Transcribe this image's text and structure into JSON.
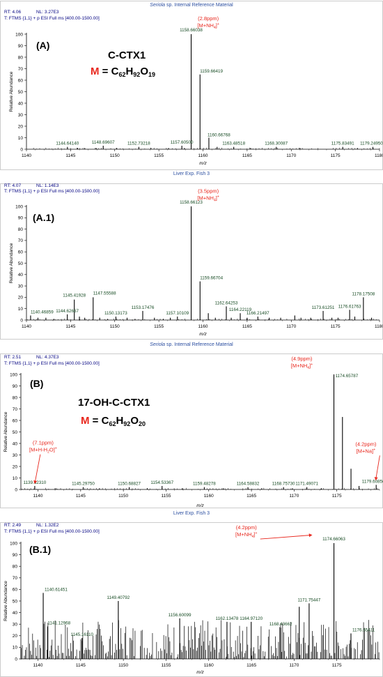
{
  "colors": {
    "caption": "#2b4ea0",
    "header": "#000080",
    "peak_label": "#154a22",
    "annotation": "#e8261c",
    "axis": "#000000",
    "border": "#aaaaaa"
  },
  "chart_data": [
    {
      "type": "line",
      "caption_prefix": "Seriola",
      "caption_suffix": " sp. Internal Reference Material",
      "rt_text": "RT:  4.06",
      "nl_text": "NL:  3.27E3",
      "scan_text": "T:  FTMS {1,1}  + p ESI Full ms [400.00-1500.00]",
      "panel_label": "(A)",
      "compound_name": "C-CTX1",
      "formula": {
        "m": "M",
        "eq": " = C",
        "c": "62",
        "h": "92",
        "o": "19"
      },
      "xlabel": "m/z",
      "ylabel": "Relative Abundance",
      "xlim": [
        1140,
        1180
      ],
      "ylim": [
        0,
        100
      ],
      "xticks": [
        1140,
        1145,
        1150,
        1155,
        1160,
        1165,
        1170,
        1175,
        1180
      ],
      "yticks": [
        0,
        10,
        20,
        30,
        40,
        50,
        60,
        70,
        80,
        90,
        100
      ],
      "peaks": [
        {
          "mz": 1144.6414,
          "y": 2
        },
        {
          "mz": 1145.8,
          "y": 1
        },
        {
          "mz": 1146.6,
          "y": 1
        },
        {
          "mz": 1147.9,
          "y": 1
        },
        {
          "mz": 1148.69607,
          "y": 3
        },
        {
          "mz": 1150.2,
          "y": 1
        },
        {
          "mz": 1152.73218,
          "y": 2
        },
        {
          "mz": 1154.1,
          "y": 1
        },
        {
          "mz": 1156.1,
          "y": 1
        },
        {
          "mz": 1157.605,
          "y": 3
        },
        {
          "mz": 1157.9,
          "y": 1
        },
        {
          "mz": 1158.66038,
          "y": 100
        },
        {
          "mz": 1159.66419,
          "y": 65
        },
        {
          "mz": 1160.66768,
          "y": 10
        },
        {
          "mz": 1161.6,
          "y": 2
        },
        {
          "mz": 1163.48518,
          "y": 2
        },
        {
          "mz": 1165.4,
          "y": 1
        },
        {
          "mz": 1168.30087,
          "y": 2
        },
        {
          "mz": 1171.0,
          "y": 1
        },
        {
          "mz": 1175.83491,
          "y": 2
        },
        {
          "mz": 1177.5,
          "y": 1
        },
        {
          "mz": 1179.2495,
          "y": 2
        }
      ],
      "peak_labels": [
        {
          "text": "1158.66038",
          "mz": 1158.66038,
          "y": 100,
          "dx": 0,
          "dy": -4,
          "anchor": "middle"
        },
        {
          "text": "1159.66419",
          "mz": 1159.66419,
          "y": 65,
          "dx": 0,
          "dy": -3,
          "anchor": "start"
        },
        {
          "text": "1160.66768",
          "mz": 1160.66768,
          "y": 10,
          "dx": -2,
          "dy": -2,
          "anchor": "start"
        },
        {
          "text": "1144.64140",
          "mz": 1144.6414,
          "y": 2,
          "dx": 0,
          "dy": -3,
          "anchor": "middle"
        },
        {
          "text": "1148.69607",
          "mz": 1148.69607,
          "y": 3,
          "dx": 0,
          "dy": -3,
          "anchor": "middle"
        },
        {
          "text": "1152.73218",
          "mz": 1152.73218,
          "y": 2,
          "dx": 0,
          "dy": -3,
          "anchor": "middle"
        },
        {
          "text": "1157.60500",
          "mz": 1157.605,
          "y": 3,
          "dx": 0,
          "dy": -3,
          "anchor": "middle"
        },
        {
          "text": "1163.48518",
          "mz": 1163.48518,
          "y": 2,
          "dx": 0,
          "dy": -3,
          "anchor": "middle"
        },
        {
          "text": "1168.30087",
          "mz": 1168.30087,
          "y": 2,
          "dx": 0,
          "dy": -3,
          "anchor": "middle"
        },
        {
          "text": "1175.83491",
          "mz": 1175.83491,
          "y": 2,
          "dx": 0,
          "dy": -3,
          "anchor": "middle"
        },
        {
          "text": "1179.24950",
          "mz": 1179.2495,
          "y": 2,
          "dx": -2,
          "dy": -3,
          "anchor": "middle"
        }
      ],
      "annotations": [
        {
          "ppm": "(2.8ppm)",
          "ion_prefix": "[M+NH",
          "ion_sub": "4",
          "ion_suffix": "]",
          "ion_sup": "+",
          "mz": 1160.6,
          "y": 112
        }
      ]
    },
    {
      "type": "line",
      "caption_text": "Liver Exp. Fish 3",
      "rt_text": "RT:  4.07",
      "nl_text": "NL:  1.14E3",
      "scan_text": "T:  FTMS {1,1}  + p ESI Full ms [400.00-1500.00]",
      "panel_label": "(A.1)",
      "xlabel": "m/z",
      "ylabel": "Relative Abundance",
      "xlim": [
        1140,
        1180
      ],
      "ylim": [
        0,
        100
      ],
      "xticks": [
        1140,
        1145,
        1150,
        1155,
        1160,
        1165,
        1170,
        1175,
        1180
      ],
      "yticks": [
        0,
        10,
        20,
        30,
        40,
        50,
        60,
        70,
        80,
        90,
        100
      ],
      "peaks": [
        {
          "mz": 1140.46859,
          "y": 4
        },
        {
          "mz": 1141.3,
          "y": 2
        },
        {
          "mz": 1142.2,
          "y": 2
        },
        {
          "mz": 1143.1,
          "y": 1
        },
        {
          "mz": 1144.62667,
          "y": 5
        },
        {
          "mz": 1145.41928,
          "y": 18
        },
        {
          "mz": 1146.0,
          "y": 3
        },
        {
          "mz": 1146.6,
          "y": 2
        },
        {
          "mz": 1147.55588,
          "y": 20
        },
        {
          "mz": 1148.3,
          "y": 2
        },
        {
          "mz": 1149.2,
          "y": 1
        },
        {
          "mz": 1150.13173,
          "y": 3
        },
        {
          "mz": 1151.4,
          "y": 2
        },
        {
          "mz": 1152.3,
          "y": 1
        },
        {
          "mz": 1153.17476,
          "y": 8
        },
        {
          "mz": 1154.5,
          "y": 2
        },
        {
          "mz": 1155.5,
          "y": 1
        },
        {
          "mz": 1156.3,
          "y": 2
        },
        {
          "mz": 1157.10109,
          "y": 3
        },
        {
          "mz": 1158.66123,
          "y": 100
        },
        {
          "mz": 1159.66704,
          "y": 34
        },
        {
          "mz": 1160.6,
          "y": 6
        },
        {
          "mz": 1161.4,
          "y": 2
        },
        {
          "mz": 1162.64253,
          "y": 12
        },
        {
          "mz": 1163.2,
          "y": 2
        },
        {
          "mz": 1164.22119,
          "y": 6
        },
        {
          "mz": 1165.0,
          "y": 2
        },
        {
          "mz": 1166.21497,
          "y": 3
        },
        {
          "mz": 1167.5,
          "y": 2
        },
        {
          "mz": 1168.8,
          "y": 2
        },
        {
          "mz": 1170.4,
          "y": 4
        },
        {
          "mz": 1171.1,
          "y": 2
        },
        {
          "mz": 1172.2,
          "y": 2
        },
        {
          "mz": 1173.61251,
          "y": 8
        },
        {
          "mz": 1174.6,
          "y": 2
        },
        {
          "mz": 1175.3,
          "y": 2
        },
        {
          "mz": 1176.61763,
          "y": 9
        },
        {
          "mz": 1177.2,
          "y": 3
        },
        {
          "mz": 1178.17508,
          "y": 20
        },
        {
          "mz": 1179.1,
          "y": 2
        }
      ],
      "peak_labels": [
        {
          "text": "1158.66123",
          "mz": 1158.66123,
          "y": 100,
          "dx": 0,
          "dy": -4,
          "anchor": "middle"
        },
        {
          "text": "1159.66704",
          "mz": 1159.66704,
          "y": 34,
          "dx": 0,
          "dy": -3,
          "anchor": "start"
        },
        {
          "text": "1145.41928",
          "mz": 1145.41928,
          "y": 18,
          "dx": 0,
          "dy": -4,
          "anchor": "middle"
        },
        {
          "text": "1147.55588",
          "mz": 1147.55588,
          "y": 20,
          "dx": 0,
          "dy": -4,
          "anchor": "start"
        },
        {
          "text": "1144.62667",
          "mz": 1144.62667,
          "y": 5,
          "dx": 0,
          "dy": -3,
          "anchor": "middle"
        },
        {
          "text": "1140.46859",
          "mz": 1140.46859,
          "y": 4,
          "dx": 0,
          "dy": -3,
          "anchor": "start"
        },
        {
          "text": "1150.13173",
          "mz": 1150.13173,
          "y": 3,
          "dx": 0,
          "dy": -3,
          "anchor": "middle"
        },
        {
          "text": "1153.17476",
          "mz": 1153.17476,
          "y": 8,
          "dx": 0,
          "dy": -3,
          "anchor": "middle"
        },
        {
          "text": "1157.10109",
          "mz": 1157.10109,
          "y": 3,
          "dx": 0,
          "dy": -3,
          "anchor": "middle"
        },
        {
          "text": "1162.64253",
          "mz": 1162.64253,
          "y": 12,
          "dx": 0,
          "dy": -3,
          "anchor": "middle"
        },
        {
          "text": "1164.22119",
          "mz": 1164.22119,
          "y": 6,
          "dx": 0,
          "dy": -3,
          "anchor": "middle"
        },
        {
          "text": "1166.21497",
          "mz": 1166.21497,
          "y": 3,
          "dx": 0,
          "dy": -3,
          "anchor": "middle"
        },
        {
          "text": "1173.61251",
          "mz": 1173.61251,
          "y": 8,
          "dx": 0,
          "dy": -3,
          "anchor": "middle"
        },
        {
          "text": "1176.61763",
          "mz": 1176.61763,
          "y": 9,
          "dx": 0,
          "dy": -3,
          "anchor": "middle"
        },
        {
          "text": "1178.17508",
          "mz": 1178.17508,
          "y": 20,
          "dx": 0,
          "dy": -3,
          "anchor": "middle"
        }
      ],
      "annotations": [
        {
          "ppm": "(3.5ppm)",
          "ion_prefix": "[M+NH",
          "ion_sub": "4",
          "ion_suffix": "]",
          "ion_sup": "+",
          "mz": 1160.6,
          "y": 112
        }
      ]
    },
    {
      "type": "line",
      "caption_prefix": "Seriola",
      "caption_suffix": " sp. Internal Reference Material",
      "rt_text": "RT:  2.51",
      "nl_text": "NL:  4.37E3",
      "scan_text": "T:  FTMS {1,1}  + p ESI Full ms [400.00-1500.00]",
      "panel_label": "(B)",
      "compound_name": "17-OH-C-CTX1",
      "formula": {
        "m": "M",
        "eq": " = C",
        "c": "62",
        "h": "92",
        "o": "20"
      },
      "xlabel": "m/z",
      "ylabel": "Relative Abundance",
      "xlim": [
        1138,
        1180
      ],
      "ylim": [
        0,
        100
      ],
      "xticks": [
        1140,
        1145,
        1150,
        1155,
        1160,
        1165,
        1170,
        1175
      ],
      "yticks": [
        0,
        10,
        20,
        30,
        40,
        50,
        60,
        70,
        80,
        90,
        100
      ],
      "peaks": [
        {
          "mz": 1139.6231,
          "y": 3
        },
        {
          "mz": 1142.1,
          "y": 1
        },
        {
          "mz": 1145.2975,
          "y": 2
        },
        {
          "mz": 1147.2,
          "y": 1
        },
        {
          "mz": 1150.68827,
          "y": 2
        },
        {
          "mz": 1152.8,
          "y": 1
        },
        {
          "mz": 1154.53367,
          "y": 3
        },
        {
          "mz": 1156.9,
          "y": 1
        },
        {
          "mz": 1159.48278,
          "y": 2
        },
        {
          "mz": 1161.7,
          "y": 1
        },
        {
          "mz": 1164.58832,
          "y": 2
        },
        {
          "mz": 1166.2,
          "y": 1
        },
        {
          "mz": 1168.7573,
          "y": 2
        },
        {
          "mz": 1169.8,
          "y": 1
        },
        {
          "mz": 1171.49071,
          "y": 2
        },
        {
          "mz": 1173.2,
          "y": 1
        },
        {
          "mz": 1174.65787,
          "y": 100
        },
        {
          "mz": 1175.66,
          "y": 63
        },
        {
          "mz": 1176.66,
          "y": 18
        },
        {
          "mz": 1177.6,
          "y": 3
        },
        {
          "mz": 1179.60856,
          "y": 4
        }
      ],
      "peak_labels": [
        {
          "text": "1174.65787",
          "mz": 1174.65787,
          "y": 100,
          "dx": 2,
          "dy": 4,
          "anchor": "start"
        },
        {
          "text": "1139.62310",
          "mz": 1139.6231,
          "y": 3,
          "dx": 0,
          "dy": -3,
          "anchor": "middle"
        },
        {
          "text": "1145.29750",
          "mz": 1145.2975,
          "y": 2,
          "dx": 0,
          "dy": -3,
          "anchor": "middle"
        },
        {
          "text": "1150.68827",
          "mz": 1150.68827,
          "y": 2,
          "dx": 0,
          "dy": -3,
          "anchor": "middle"
        },
        {
          "text": "1154.53367",
          "mz": 1154.53367,
          "y": 3,
          "dx": 0,
          "dy": -3,
          "anchor": "middle"
        },
        {
          "text": "1159.48278",
          "mz": 1159.48278,
          "y": 2,
          "dx": 0,
          "dy": -3,
          "anchor": "middle"
        },
        {
          "text": "1164.58832",
          "mz": 1164.58832,
          "y": 2,
          "dx": 0,
          "dy": -3,
          "anchor": "middle"
        },
        {
          "text": "1168.75730",
          "mz": 1168.7573,
          "y": 2,
          "dx": 0,
          "dy": -3,
          "anchor": "middle"
        },
        {
          "text": "1171.49071",
          "mz": 1171.49071,
          "y": 2,
          "dx": 0,
          "dy": -3,
          "anchor": "middle"
        },
        {
          "text": "1179.60856",
          "mz": 1179.60856,
          "y": 4,
          "dx": -4,
          "dy": -3,
          "anchor": "middle"
        }
      ],
      "annotations": [
        {
          "ppm": "(4.9ppm)",
          "ion_prefix": "[M+NH",
          "ion_sub": "4",
          "ion_suffix": "]",
          "ion_sup": "+",
          "mz": 1170.9,
          "y": 112
        },
        {
          "ppm": "(7.1ppm)",
          "ion_prefix": "[M+H-H",
          "ion_sub": "2",
          "ion_suffix": "O]",
          "ion_sup": "+",
          "mz": 1140.6,
          "y": 39,
          "arrow_to": {
            "mz": 1139.62,
            "y": 5
          }
        },
        {
          "ppm": "(4.2ppm)",
          "ion_prefix": "[M+Na]",
          "ion_sub": "",
          "ion_suffix": "",
          "ion_sup": "+",
          "mz": 1178.4,
          "y": 38,
          "arrow_to": {
            "mz": 1179.55,
            "y": 8
          }
        }
      ]
    },
    {
      "type": "line",
      "caption_text": "Liver Exp. Fish 3",
      "rt_text": "RT:  2.49",
      "nl_text": "NL:  1.32E2",
      "scan_text": "T:  FTMS {1,1}  + p ESI Full ms [400.00-1500.00]",
      "panel_label": "(B.1)",
      "xlabel": "m/z",
      "ylabel": "Relative Abundance",
      "xlim": [
        1138,
        1180
      ],
      "ylim": [
        0,
        100
      ],
      "xticks": [
        1140,
        1145,
        1150,
        1155,
        1160,
        1165,
        1170,
        1175
      ],
      "yticks": [
        0,
        10,
        20,
        30,
        40,
        50,
        60,
        70,
        80,
        90,
        100
      ],
      "peaks": [
        {
          "mz": 1140.61451,
          "y": 57
        },
        {
          "mz": 1141.12968,
          "y": 28
        },
        {
          "mz": 1145.1611,
          "y": 18
        },
        {
          "mz": 1149.40792,
          "y": 50
        },
        {
          "mz": 1156.60099,
          "y": 35
        },
        {
          "mz": 1162.13478,
          "y": 32
        },
        {
          "mz": 1164.9712,
          "y": 32
        },
        {
          "mz": 1168.43662,
          "y": 27
        },
        {
          "mz": 1170.6,
          "y": 45
        },
        {
          "mz": 1171.75447,
          "y": 48
        },
        {
          "mz": 1174.66063,
          "y": 100
        },
        {
          "mz": 1176.65411,
          "y": 22
        }
      ],
      "noise": {
        "seed": 7,
        "step": 0.12,
        "max": 34
      },
      "peak_labels": [
        {
          "text": "1174.66063",
          "mz": 1174.66063,
          "y": 100,
          "dx": 0,
          "dy": -4,
          "anchor": "middle"
        },
        {
          "text": "1140.61451",
          "mz": 1140.61451,
          "y": 57,
          "dx": 2,
          "dy": -3,
          "anchor": "start"
        },
        {
          "text": "1141.12968",
          "mz": 1141.12968,
          "y": 28,
          "dx": 0,
          "dy": -3,
          "anchor": "start"
        },
        {
          "text": "1145.16110",
          "mz": 1145.1611,
          "y": 18,
          "dx": 0,
          "dy": -3,
          "anchor": "middle"
        },
        {
          "text": "1149.40792",
          "mz": 1149.40792,
          "y": 50,
          "dx": 0,
          "dy": -3,
          "anchor": "middle"
        },
        {
          "text": "1156.60099",
          "mz": 1156.60099,
          "y": 35,
          "dx": 0,
          "dy": -3,
          "anchor": "middle"
        },
        {
          "text": "1162.13478",
          "mz": 1162.13478,
          "y": 32,
          "dx": 0,
          "dy": -3,
          "anchor": "middle"
        },
        {
          "text": "1164.97120",
          "mz": 1164.9712,
          "y": 32,
          "dx": 0,
          "dy": -3,
          "anchor": "middle"
        },
        {
          "text": "1168.43662",
          "mz": 1168.43662,
          "y": 27,
          "dx": 0,
          "dy": -3,
          "anchor": "middle"
        },
        {
          "text": "1171.75447",
          "mz": 1171.75447,
          "y": 48,
          "dx": 0,
          "dy": -3,
          "anchor": "middle"
        },
        {
          "text": "1176.65411",
          "mz": 1176.65411,
          "y": 22,
          "dx": 2,
          "dy": -3,
          "anchor": "start"
        }
      ],
      "annotations": [
        {
          "ppm": "(4.2ppm)",
          "ion_prefix": "[M+NH",
          "ion_sub": "4",
          "ion_suffix": "]",
          "ion_sup": "+",
          "mz": 1164.4,
          "y": 112,
          "arrow_to": {
            "mz": 1172.1,
            "y": 107
          }
        }
      ]
    }
  ]
}
